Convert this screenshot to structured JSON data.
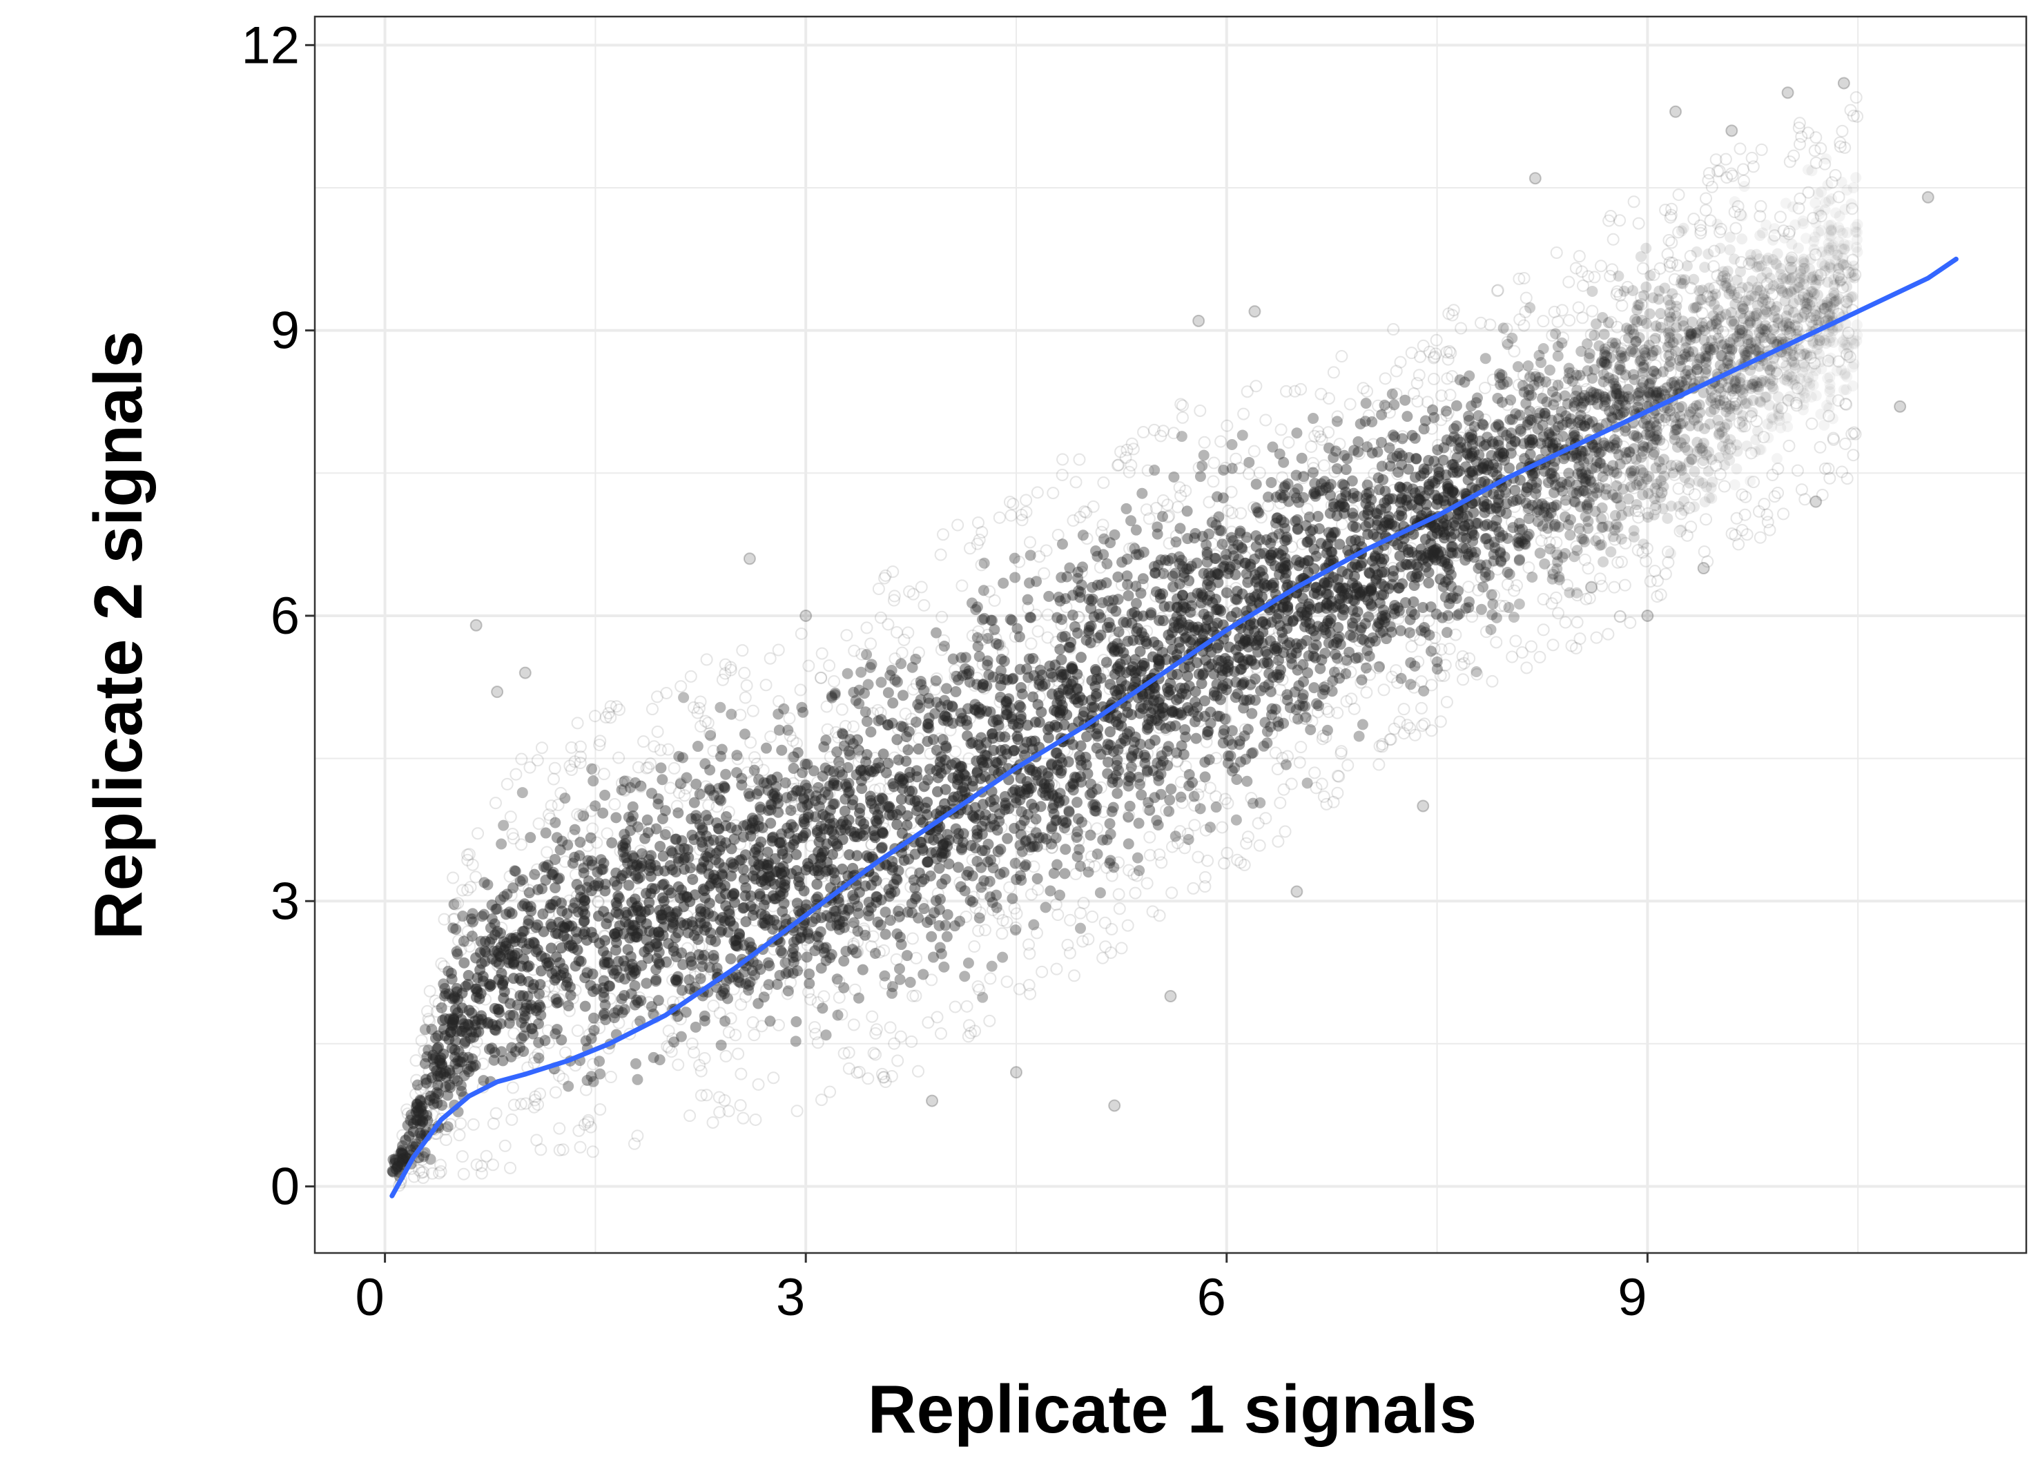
{
  "chart_data": {
    "type": "scatter",
    "title": "",
    "xlabel": "Replicate 1 signals",
    "ylabel": "Replicate 2 signals",
    "xlim": [
      -0.5,
      11.7
    ],
    "ylim": [
      -0.7,
      12.3
    ],
    "x_ticks": [
      0,
      3,
      6,
      9
    ],
    "y_ticks": [
      0,
      3,
      6,
      9,
      12
    ],
    "x_tick_labels": [
      "0",
      "3",
      "6",
      "9"
    ],
    "y_tick_labels": [
      "0",
      "3",
      "6",
      "9",
      "12"
    ],
    "grid": true,
    "legend": "none",
    "colors": {
      "points": "#262626",
      "smooth_line": "#3366ff",
      "grid": "#ebebeb",
      "panel_border": "#333333"
    },
    "series": [
      {
        "kind": "points",
        "description_in_units": "dense cloud of overlapping translucent dark points along the diagonal",
        "density_profile": [
          {
            "x": 0.1,
            "y_low": 0.0,
            "y_high": 0.4
          },
          {
            "x": 0.5,
            "y_low": 0.05,
            "y_high": 3.5
          },
          {
            "x": 1.0,
            "y_low": 0.2,
            "y_high": 4.6
          },
          {
            "x": 2.0,
            "y_low": 0.5,
            "y_high": 5.4
          },
          {
            "x": 3.0,
            "y_low": 0.8,
            "y_high": 5.9
          },
          {
            "x": 4.0,
            "y_low": 1.3,
            "y_high": 6.9
          },
          {
            "x": 5.0,
            "y_low": 2.2,
            "y_high": 7.9
          },
          {
            "x": 6.0,
            "y_low": 3.2,
            "y_high": 8.4
          },
          {
            "x": 7.0,
            "y_low": 4.3,
            "y_high": 8.9
          },
          {
            "x": 8.0,
            "y_low": 5.3,
            "y_high": 9.5
          },
          {
            "x": 9.0,
            "y_low": 6.0,
            "y_high": 10.5
          },
          {
            "x": 10.5,
            "y_low": 7.5,
            "y_high": 11.5
          }
        ],
        "outliers": [
          [
            0.65,
            5.9
          ],
          [
            0.8,
            5.2
          ],
          [
            1.0,
            5.4
          ],
          [
            2.6,
            6.6
          ],
          [
            3.0,
            6.0
          ],
          [
            5.8,
            9.1
          ],
          [
            6.2,
            9.2
          ],
          [
            8.2,
            10.6
          ],
          [
            9.2,
            11.3
          ],
          [
            9.6,
            11.1
          ],
          [
            10.0,
            11.5
          ],
          [
            10.4,
            11.6
          ],
          [
            11.0,
            10.4
          ],
          [
            9.0,
            6.0
          ],
          [
            8.6,
            6.3
          ],
          [
            7.4,
            4.0
          ],
          [
            6.5,
            3.1
          ],
          [
            5.6,
            2.0
          ],
          [
            4.5,
            1.2
          ],
          [
            3.9,
            0.9
          ],
          [
            5.2,
            0.85
          ],
          [
            10.8,
            8.2
          ],
          [
            10.2,
            7.2
          ],
          [
            9.4,
            6.5
          ]
        ]
      },
      {
        "kind": "smooth",
        "x": [
          0.05,
          0.2,
          0.4,
          0.6,
          0.8,
          1.0,
          1.3,
          1.6,
          2.0,
          2.5,
          3.0,
          3.5,
          4.0,
          4.5,
          5.0,
          5.5,
          6.0,
          6.5,
          7.0,
          7.5,
          8.0,
          8.5,
          9.0,
          9.5,
          10.0,
          10.5,
          11.0,
          11.2
        ],
        "y": [
          -0.1,
          0.3,
          0.7,
          0.95,
          1.1,
          1.18,
          1.32,
          1.5,
          1.8,
          2.3,
          2.85,
          3.4,
          3.9,
          4.4,
          4.85,
          5.35,
          5.85,
          6.3,
          6.7,
          7.05,
          7.45,
          7.8,
          8.15,
          8.5,
          8.85,
          9.2,
          9.55,
          9.75
        ]
      }
    ]
  }
}
